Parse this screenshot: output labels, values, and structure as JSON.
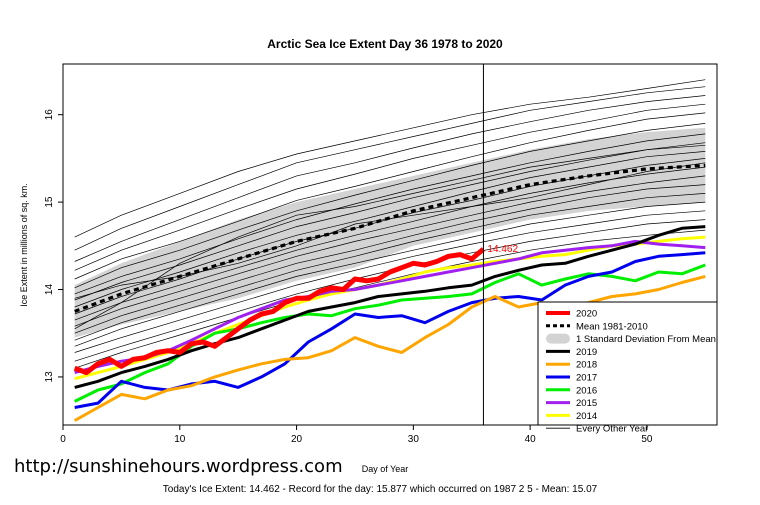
{
  "chart_data": {
    "type": "line",
    "title": "Arctic Sea Ice Extent Day 36 1978 to 2020",
    "xlabel": "Day of Year",
    "ylabel": "Ice Extent in millions of sq. km.",
    "xlim": [
      0,
      56
    ],
    "ylim": [
      12.45,
      16.58
    ],
    "xticks": [
      0,
      10,
      20,
      30,
      40,
      50
    ],
    "yticks": [
      13,
      14,
      15,
      16
    ],
    "current_day": 36,
    "annotation": "14.462",
    "legend_position": "bottom-right",
    "mean": {
      "name": "Mean 1981-2010",
      "x": [
        1,
        5,
        10,
        15,
        20,
        25,
        30,
        35,
        40,
        45,
        50,
        55
      ],
      "y": [
        13.75,
        13.95,
        14.15,
        14.35,
        14.55,
        14.7,
        14.9,
        15.05,
        15.2,
        15.3,
        15.38,
        15.42
      ]
    },
    "std_band": {
      "name": "1 Standard Deviation From Mean",
      "x": [
        1,
        5,
        10,
        15,
        20,
        25,
        30,
        35,
        40,
        45,
        50,
        55
      ],
      "upper": [
        14.05,
        14.3,
        14.55,
        14.8,
        15.0,
        15.15,
        15.3,
        15.45,
        15.6,
        15.72,
        15.8,
        15.85
      ],
      "lower": [
        13.45,
        13.6,
        13.75,
        13.9,
        14.1,
        14.25,
        14.5,
        14.65,
        14.8,
        14.9,
        14.95,
        15.0
      ]
    },
    "series": [
      {
        "name": "2020",
        "color": "#ff0000",
        "width": 5,
        "x": [
          1,
          2,
          3,
          4,
          5,
          6,
          7,
          8,
          9,
          10,
          11,
          12,
          13,
          14,
          15,
          16,
          17,
          18,
          19,
          20,
          21,
          22,
          23,
          24,
          25,
          26,
          27,
          28,
          29,
          30,
          31,
          32,
          33,
          34,
          35,
          36
        ],
        "y": [
          13.1,
          13.05,
          13.15,
          13.2,
          13.12,
          13.2,
          13.22,
          13.28,
          13.3,
          13.28,
          13.38,
          13.4,
          13.35,
          13.45,
          13.55,
          13.65,
          13.72,
          13.75,
          13.85,
          13.9,
          13.9,
          13.98,
          14.02,
          14.0,
          14.12,
          14.1,
          14.12,
          14.2,
          14.25,
          14.3,
          14.28,
          14.32,
          14.38,
          14.4,
          14.35,
          14.462
        ]
      },
      {
        "name": "2019",
        "color": "#000000",
        "width": 3,
        "x": [
          1,
          3,
          5,
          7,
          9,
          11,
          13,
          15,
          17,
          19,
          21,
          23,
          25,
          27,
          29,
          31,
          33,
          35,
          37,
          39,
          41,
          43,
          45,
          47,
          49,
          51,
          53,
          55
        ],
        "y": [
          12.88,
          12.95,
          13.05,
          13.12,
          13.2,
          13.3,
          13.38,
          13.45,
          13.55,
          13.65,
          13.75,
          13.8,
          13.85,
          13.92,
          13.95,
          13.98,
          14.02,
          14.05,
          14.15,
          14.22,
          14.28,
          14.3,
          14.38,
          14.45,
          14.52,
          14.62,
          14.7,
          14.72
        ]
      },
      {
        "name": "2018",
        "color": "#ffa500",
        "width": 3,
        "x": [
          1,
          3,
          5,
          7,
          9,
          11,
          13,
          15,
          17,
          19,
          21,
          23,
          25,
          27,
          29,
          31,
          33,
          35,
          37,
          39,
          41,
          43,
          45,
          47,
          49,
          51,
          53,
          55
        ],
        "y": [
          12.5,
          12.65,
          12.8,
          12.75,
          12.85,
          12.9,
          13.0,
          13.08,
          13.15,
          13.2,
          13.22,
          13.3,
          13.45,
          13.35,
          13.28,
          13.45,
          13.6,
          13.8,
          13.92,
          13.8,
          13.85,
          13.78,
          13.85,
          13.92,
          13.95,
          14.0,
          14.08,
          14.15
        ]
      },
      {
        "name": "2017",
        "color": "#0000ee",
        "width": 3,
        "x": [
          1,
          3,
          5,
          7,
          9,
          11,
          13,
          15,
          17,
          19,
          21,
          23,
          25,
          27,
          29,
          31,
          33,
          35,
          37,
          39,
          41,
          43,
          45,
          47,
          49,
          51,
          53,
          55
        ],
        "y": [
          12.65,
          12.7,
          12.95,
          12.88,
          12.85,
          12.92,
          12.95,
          12.88,
          13.0,
          13.15,
          13.4,
          13.55,
          13.72,
          13.68,
          13.7,
          13.62,
          13.75,
          13.85,
          13.9,
          13.92,
          13.88,
          14.05,
          14.15,
          14.2,
          14.32,
          14.38,
          14.4,
          14.42
        ]
      },
      {
        "name": "2016",
        "color": "#00ee00",
        "width": 3,
        "x": [
          1,
          3,
          5,
          7,
          9,
          11,
          13,
          15,
          17,
          19,
          21,
          23,
          25,
          27,
          29,
          31,
          33,
          35,
          37,
          39,
          41,
          43,
          45,
          47,
          49,
          51,
          53,
          55
        ],
        "y": [
          12.72,
          12.85,
          12.92,
          13.05,
          13.15,
          13.35,
          13.5,
          13.55,
          13.62,
          13.68,
          13.72,
          13.7,
          13.78,
          13.82,
          13.88,
          13.9,
          13.92,
          13.95,
          14.08,
          14.18,
          14.05,
          14.12,
          14.18,
          14.15,
          14.1,
          14.2,
          14.18,
          14.28
        ]
      },
      {
        "name": "2015",
        "color": "#a020f0",
        "width": 3,
        "x": [
          1,
          3,
          5,
          7,
          9,
          11,
          13,
          15,
          17,
          19,
          21,
          23,
          25,
          27,
          29,
          31,
          33,
          35,
          37,
          39,
          41,
          43,
          45,
          47,
          49,
          51,
          53,
          55
        ],
        "y": [
          13.05,
          13.12,
          13.18,
          13.22,
          13.3,
          13.42,
          13.55,
          13.68,
          13.78,
          13.88,
          13.92,
          13.98,
          14.0,
          14.05,
          14.1,
          14.15,
          14.2,
          14.25,
          14.3,
          14.35,
          14.42,
          14.45,
          14.48,
          14.5,
          14.55,
          14.52,
          14.5,
          14.48
        ]
      },
      {
        "name": "2014",
        "color": "#ffff00",
        "width": 3,
        "x": [
          1,
          3,
          5,
          7,
          9,
          11,
          13,
          15,
          17,
          19,
          21,
          23,
          25,
          27,
          29,
          31,
          33,
          35,
          37,
          39,
          41,
          43,
          45,
          47,
          49,
          51,
          53,
          55
        ],
        "y": [
          12.98,
          13.05,
          13.12,
          13.2,
          13.28,
          13.38,
          13.5,
          13.6,
          13.7,
          13.8,
          13.88,
          13.95,
          14.0,
          14.05,
          14.12,
          14.2,
          14.25,
          14.28,
          14.32,
          14.35,
          14.38,
          14.4,
          14.45,
          14.5,
          14.52,
          14.55,
          14.58,
          14.6
        ]
      }
    ],
    "other_years": {
      "name": "Every Other Year",
      "color": "#000000",
      "x": [
        1,
        5,
        10,
        15,
        20,
        25,
        30,
        35,
        40,
        45,
        50,
        55
      ],
      "lines": [
        [
          14.45,
          14.7,
          14.95,
          15.2,
          15.45,
          15.6,
          15.75,
          15.9,
          16.05,
          16.15,
          16.25,
          16.32
        ],
        [
          14.32,
          14.55,
          14.8,
          15.05,
          15.3,
          15.45,
          15.62,
          15.78,
          15.92,
          16.05,
          16.15,
          16.22
        ],
        [
          14.22,
          14.45,
          14.68,
          14.92,
          15.15,
          15.32,
          15.5,
          15.65,
          15.8,
          15.92,
          16.05,
          16.12
        ],
        [
          14.12,
          14.35,
          14.55,
          14.78,
          15.02,
          15.18,
          15.35,
          15.52,
          15.68,
          15.82,
          15.95,
          16.02
        ],
        [
          14.02,
          14.25,
          14.45,
          14.68,
          14.9,
          15.08,
          15.25,
          15.42,
          15.58,
          15.7,
          15.82,
          15.9
        ],
        [
          13.95,
          14.15,
          14.35,
          14.58,
          14.8,
          14.98,
          15.15,
          15.3,
          15.45,
          15.58,
          15.7,
          15.78
        ],
        [
          13.88,
          14.08,
          14.28,
          14.5,
          14.72,
          14.88,
          15.05,
          15.2,
          15.35,
          15.48,
          15.6,
          15.68
        ],
        [
          13.8,
          14.0,
          14.2,
          14.42,
          14.62,
          14.78,
          14.95,
          15.12,
          15.28,
          15.4,
          15.52,
          15.58
        ],
        [
          13.72,
          13.92,
          14.12,
          14.35,
          14.55,
          14.7,
          14.88,
          15.02,
          15.18,
          15.3,
          15.42,
          15.5
        ],
        [
          13.65,
          13.85,
          14.05,
          14.25,
          14.45,
          14.62,
          14.78,
          14.95,
          15.1,
          15.22,
          15.32,
          15.4
        ],
        [
          13.58,
          13.78,
          13.98,
          14.18,
          14.38,
          14.55,
          14.7,
          14.85,
          15.0,
          15.12,
          15.22,
          15.3
        ],
        [
          13.5,
          13.7,
          13.9,
          14.1,
          14.3,
          14.45,
          14.62,
          14.78,
          14.92,
          15.05,
          15.15,
          15.2
        ],
        [
          13.42,
          13.62,
          13.82,
          14.02,
          14.22,
          14.38,
          14.55,
          14.7,
          14.85,
          14.95,
          15.05,
          15.1
        ],
        [
          13.35,
          13.55,
          13.75,
          13.95,
          14.15,
          14.3,
          14.45,
          14.6,
          14.75,
          14.85,
          14.95,
          15.0
        ],
        [
          13.28,
          13.45,
          13.65,
          13.85,
          14.05,
          14.22,
          14.38,
          14.52,
          14.65,
          14.75,
          14.85,
          14.9
        ],
        [
          13.18,
          13.35,
          13.55,
          13.75,
          13.95,
          14.12,
          14.28,
          14.42,
          14.55,
          14.65,
          14.75,
          14.8
        ],
        [
          13.1,
          13.28,
          13.48,
          13.68,
          13.88,
          14.02,
          14.18,
          14.32,
          14.45,
          14.55,
          14.62,
          14.68
        ],
        [
          14.6,
          14.85,
          15.1,
          15.35,
          15.55,
          15.7,
          15.85,
          16.0,
          16.12,
          16.2,
          16.3,
          16.4
        ],
        [
          13.55,
          13.85,
          14.3,
          14.6,
          14.85,
          14.95,
          15.1,
          15.25,
          15.4,
          15.5,
          15.6,
          15.65
        ],
        [
          13.9,
          14.05,
          14.15,
          14.3,
          14.5,
          14.75,
          14.85,
          14.95,
          15.05,
          15.2,
          15.35,
          15.45
        ]
      ]
    }
  },
  "watermark": "http://sunshinehours.wordpress.com",
  "footer": "Today's Ice Extent: 14.462  - Record for the day: 15.877 which occurred on 1987 2 5  - Mean: 15.07"
}
